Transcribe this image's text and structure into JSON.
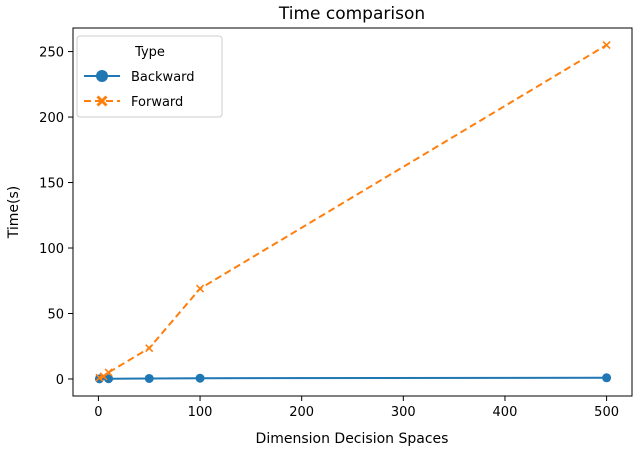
{
  "chart_data": {
    "type": "line",
    "title": "Time comparison",
    "xlabel": "Dimension Decision Spaces",
    "ylabel": "Time(s)",
    "xlim": [
      -25,
      525
    ],
    "ylim": [
      -13,
      268
    ],
    "xticks": [
      0,
      100,
      200,
      300,
      400,
      500
    ],
    "yticks": [
      0,
      50,
      100,
      150,
      200,
      250
    ],
    "grid": false,
    "legend": {
      "title": "Type",
      "placement": "top-left"
    },
    "series": [
      {
        "name": "Backward",
        "color": "#1f77b4",
        "line_style": "solid",
        "marker": "circle",
        "x": [
          1,
          10,
          50,
          100,
          500
        ],
        "y": [
          0.1,
          0.2,
          0.4,
          0.6,
          0.9
        ]
      },
      {
        "name": "Forward",
        "color": "#ff7f0e",
        "line_style": "dashed",
        "marker": "x",
        "x": [
          1,
          5,
          10,
          50,
          100,
          500
        ],
        "y": [
          1.0,
          2.0,
          5.0,
          23.5,
          69.0,
          255.0
        ]
      }
    ]
  }
}
